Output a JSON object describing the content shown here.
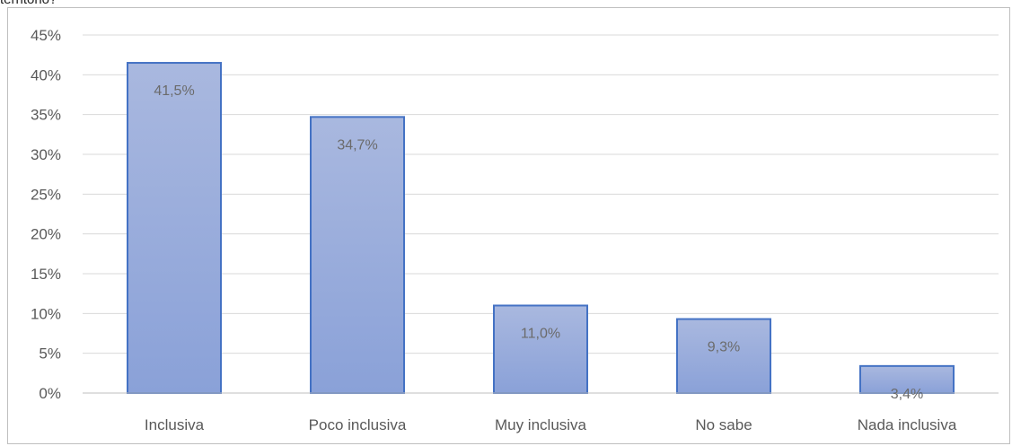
{
  "page": {
    "top_text": "territorio?"
  },
  "chart_data": {
    "type": "bar",
    "categories": [
      "Inclusiva",
      "Poco inclusiva",
      "Muy inclusiva",
      "No sabe",
      "Nada inclusiva"
    ],
    "values": [
      41.5,
      34.7,
      11.0,
      9.3,
      3.4
    ],
    "data_labels": [
      "41,5%",
      "34,7%",
      "11,0%",
      "9,3%",
      "3,4%"
    ],
    "y_ticks": [
      0,
      5,
      10,
      15,
      20,
      25,
      30,
      35,
      40,
      45
    ],
    "y_tick_labels": [
      "0%",
      "5%",
      "10%",
      "15%",
      "20%",
      "25%",
      "30%",
      "35%",
      "40%",
      "45%"
    ],
    "ylim": [
      0,
      45
    ],
    "grid": true,
    "legend": "none",
    "colors": {
      "bar_fill_top": "#a9b8df",
      "bar_fill_bottom": "#8aa1d8",
      "bar_stroke": "#4472c4",
      "grid": "#d9d9d9",
      "axis": "#bfbfbf"
    }
  }
}
